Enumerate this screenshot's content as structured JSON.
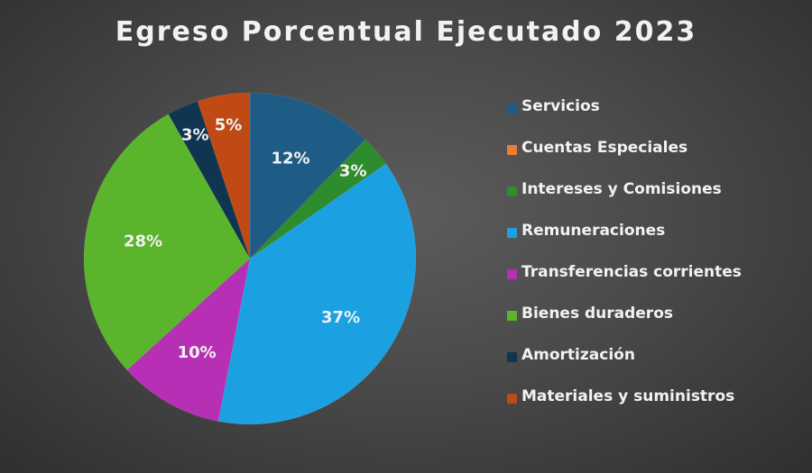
{
  "chart_data": {
    "type": "pie",
    "title": "Egreso Porcentual Ejecutado 2023",
    "categories": [
      "Servicios",
      "Cuentas Especiales",
      "Intereses y Comisiones",
      "Remuneraciones",
      "Transferencias corrientes",
      "Bienes duraderos",
      "Amortización",
      "Materiales y suministros"
    ],
    "values": [
      12,
      0,
      3,
      37,
      10,
      28,
      3,
      5
    ],
    "data_labels": [
      "12%",
      "",
      "3%",
      "37%",
      "10%",
      "28%",
      "3%",
      "5%"
    ],
    "colors": [
      "#1f5c85",
      "#ed7d31",
      "#2e8b2e",
      "#1ba1e2",
      "#b72fb5",
      "#5bb52c",
      "#0f3550",
      "#c04a14"
    ],
    "legend_position": "right"
  }
}
